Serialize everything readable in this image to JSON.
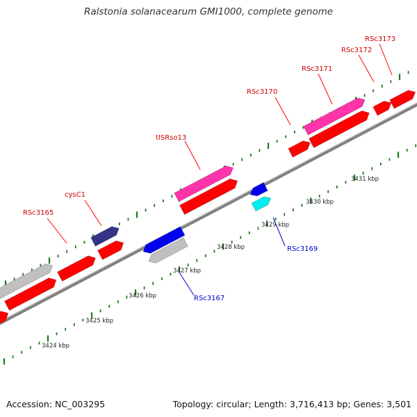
{
  "title": "Ralstonia solanacearum GMI1000, complete genome",
  "footer": {
    "accession": "Accession: NC_003295",
    "summary": "Topology: circular; Length: 3,716,413 bp; Genes: 3,501"
  },
  "colors": {
    "cds": "#ff0000",
    "rna_pink": "#ff33aa",
    "plus_label": "#cc0000",
    "minus_label": "#0000cc",
    "backbone": "#808080",
    "tick": "#1a7a1a",
    "gene_blue": "#0000ee",
    "gene_navy": "#333388",
    "gene_gray": "#c0c0c0",
    "gene_cyan": "#00eeee"
  },
  "kbp_labels": [
    "3424 kbp",
    "3425 kbp",
    "3426 kbp",
    "3427 kbp",
    "3428 kbp",
    "3429 kbp",
    "3430 kbp",
    "3431 kbp"
  ],
  "gene_labels_plus": [
    "RSc3165",
    "cysC1",
    "tISRso13",
    "RSc3170",
    "RSc3171",
    "RSc3172",
    "RSc3173"
  ],
  "gene_labels_minus": [
    "RSc3167",
    "RSc3169"
  ]
}
